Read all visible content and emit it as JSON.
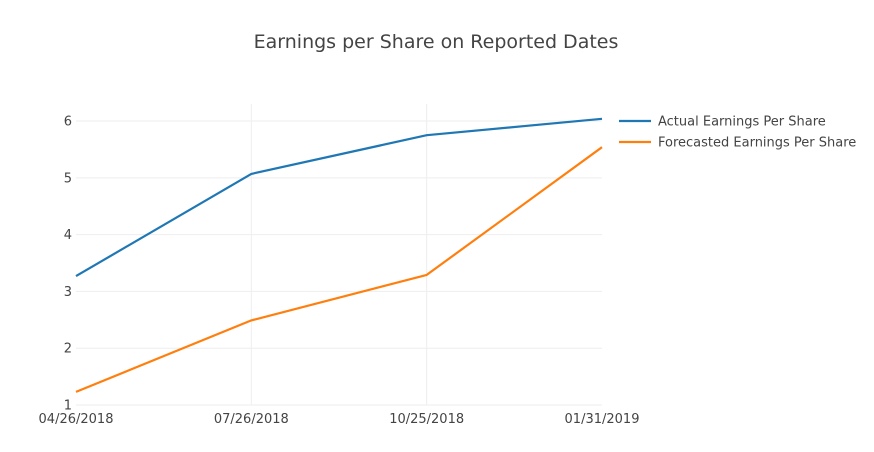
{
  "chart_data": {
    "type": "line",
    "title": "Earnings per Share on Reported Dates",
    "xlabel": "",
    "ylabel": "",
    "categories": [
      "04/26/2018",
      "07/26/2018",
      "10/25/2018",
      "01/31/2019"
    ],
    "ylim": [
      1,
      6.3
    ],
    "yticks": [
      "1",
      "2",
      "3",
      "4",
      "5",
      "6"
    ],
    "grid": true,
    "legend_position": "right",
    "series": [
      {
        "name": "Actual Earnings Per Share",
        "color": "#1f77b4",
        "values": [
          3.27,
          5.07,
          5.75,
          6.04
        ]
      },
      {
        "name": "Forecasted Earnings Per Share",
        "color": "#ff7f0e",
        "values": [
          1.23,
          2.49,
          3.29,
          5.54
        ]
      }
    ]
  }
}
